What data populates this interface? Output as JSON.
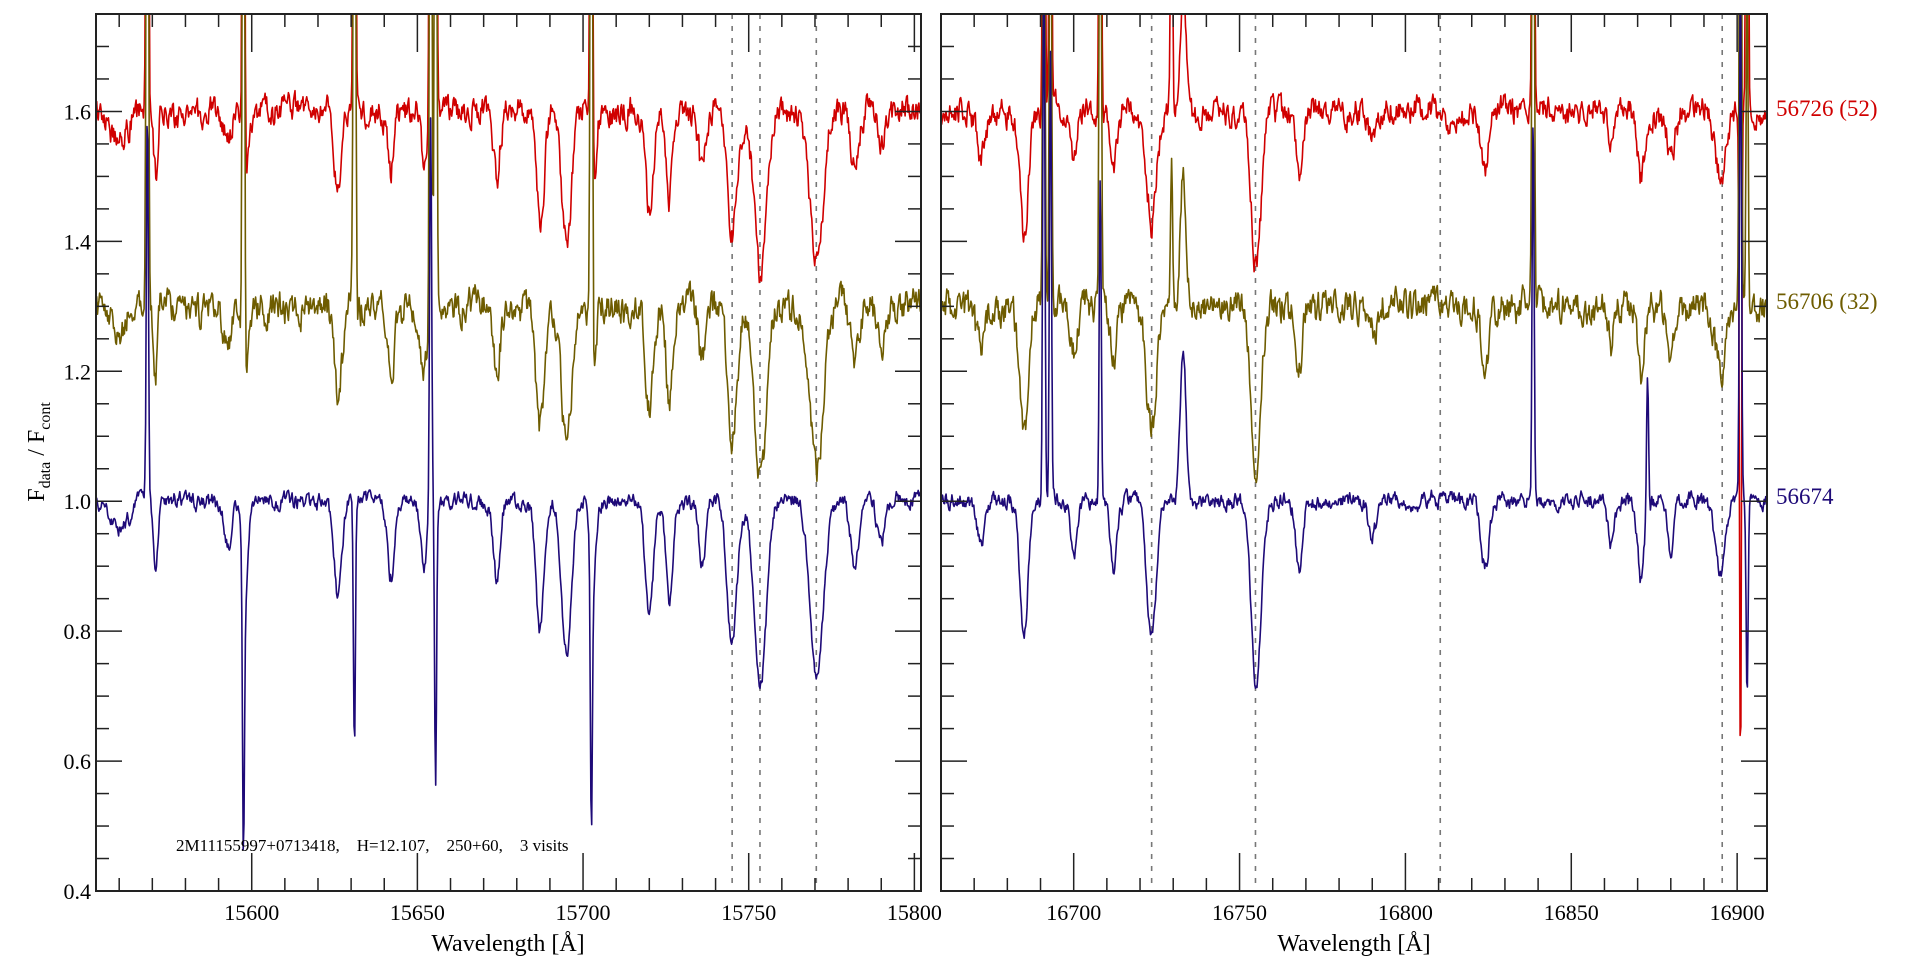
{
  "chart_data": {
    "type": "line",
    "title": "",
    "ylabel": {
      "main1": "F",
      "sub1": "data",
      "mid": " / F",
      "sub2": "cont"
    },
    "xlabel": "Wavelength [Å]",
    "ylim": [
      0.4,
      1.75
    ],
    "yticks": [
      0.4,
      0.6,
      0.8,
      1.0,
      1.2,
      1.4,
      1.6
    ],
    "ytick_labels": [
      "0.4",
      "0.6",
      "0.8",
      "1.0",
      "1.2",
      "1.4",
      "1.6"
    ],
    "annotation": "2M11155997+0713418,    H=12.107,    250+60,    3 visits",
    "panels": [
      {
        "xlim": [
          15553,
          15802
        ],
        "xticks": [
          15600,
          15650,
          15700,
          15750,
          15800
        ],
        "xtick_labels": [
          "15600",
          "15650",
          "15700",
          "15750",
          "15800"
        ],
        "dashed_lines": [
          15745,
          15753.4,
          15770.4
        ]
      },
      {
        "xlim": [
          16660,
          16909
        ],
        "xticks": [
          16700,
          16750,
          16800,
          16850,
          16900
        ],
        "xtick_labels": [
          "16700",
          "16750",
          "16800",
          "16850",
          "16900"
        ],
        "dashed_lines": [
          16723.5,
          16754.8,
          16810.5,
          16895.5
        ]
      }
    ],
    "series": [
      {
        "name": "56726 (52)",
        "offset": 0.6,
        "color": "#d00000",
        "noise": 0.028,
        "depth_scale": 0.85
      },
      {
        "name": "56706 (32)",
        "offset": 0.3,
        "color": "#6e5c00",
        "noise": 0.032,
        "depth_scale": 0.9
      },
      {
        "name": "56674",
        "offset": 0.0,
        "color": "#1e0a78",
        "noise": 0.016,
        "depth_scale": 1.0
      }
    ],
    "absorption_lines": [
      [
        15560,
        0.05,
        2.5
      ],
      [
        15571,
        0.12,
        0.6
      ],
      [
        15593,
        0.07,
        1.0
      ],
      [
        15598,
        0.15,
        0.8
      ],
      [
        15626,
        0.15,
        1.2
      ],
      [
        15642,
        0.12,
        1.0
      ],
      [
        15652,
        0.1,
        1.0
      ],
      [
        15674,
        0.12,
        1.0
      ],
      [
        15687,
        0.2,
        1.2
      ],
      [
        15695,
        0.23,
        1.5
      ],
      [
        15703,
        0.15,
        0.8
      ],
      [
        15720,
        0.18,
        1.2
      ],
      [
        15726,
        0.15,
        1.0
      ],
      [
        15736,
        0.1,
        1.0
      ],
      [
        15745,
        0.22,
        1.5
      ],
      [
        15753.5,
        0.28,
        1.8
      ],
      [
        15770.5,
        0.28,
        2.0
      ],
      [
        15782,
        0.1,
        1.2
      ],
      [
        15790,
        0.06,
        1.2
      ],
      [
        16672,
        0.07,
        1.2
      ],
      [
        16685,
        0.21,
        1.2
      ],
      [
        16700,
        0.08,
        1.0
      ],
      [
        16712,
        0.1,
        1.0
      ],
      [
        16723.5,
        0.21,
        1.5
      ],
      [
        16733,
        -0.22,
        0.9
      ],
      [
        16755,
        0.28,
        1.5
      ],
      [
        16768,
        0.1,
        1.0
      ],
      [
        16790,
        0.05,
        1.2
      ],
      [
        16824,
        0.1,
        1.2
      ],
      [
        16862,
        0.07,
        1.0
      ],
      [
        16871,
        0.12,
        1.0
      ],
      [
        16880,
        0.08,
        1.0
      ],
      [
        16895,
        0.12,
        1.5
      ]
    ],
    "sky_residuals": [
      {
        "wl": 15568.5,
        "amp": [
          1.5,
          1.5,
          0.6
        ]
      },
      {
        "wl": 15597.5,
        "amp": [
          1.5,
          1.5,
          -0.42
        ]
      },
      {
        "wl": 15631,
        "amp": [
          1.5,
          1.5,
          -0.38
        ]
      },
      {
        "wl": 15654,
        "amp": [
          1.5,
          1.5,
          0.6
        ]
      },
      {
        "wl": 15655.5,
        "amp": [
          1.5,
          1.5,
          -0.43
        ]
      },
      {
        "wl": 15702.5,
        "amp": [
          1.5,
          1.5,
          -0.38
        ]
      },
      {
        "wl": 16691,
        "amp": [
          1.2,
          0.9,
          0.9
        ]
      },
      {
        "wl": 16693,
        "amp": [
          0.9,
          0.9,
          0.7
        ]
      },
      {
        "wl": 16708,
        "amp": [
          0.9,
          0.9,
          0.5
        ]
      },
      {
        "wl": 16729.5,
        "amp": [
          0.5,
          0.2,
          0.0
        ]
      },
      {
        "wl": 16838.5,
        "amp": [
          1.2,
          1.2,
          0.6
        ]
      },
      {
        "wl": 16873,
        "amp": [
          0.0,
          0.0,
          0.22
        ]
      },
      {
        "wl": 16901,
        "amp": [
          -1.0,
          1.2,
          0.8
        ]
      },
      {
        "wl": 16903,
        "amp": [
          1.2,
          0.5,
          -0.3
        ]
      }
    ]
  }
}
